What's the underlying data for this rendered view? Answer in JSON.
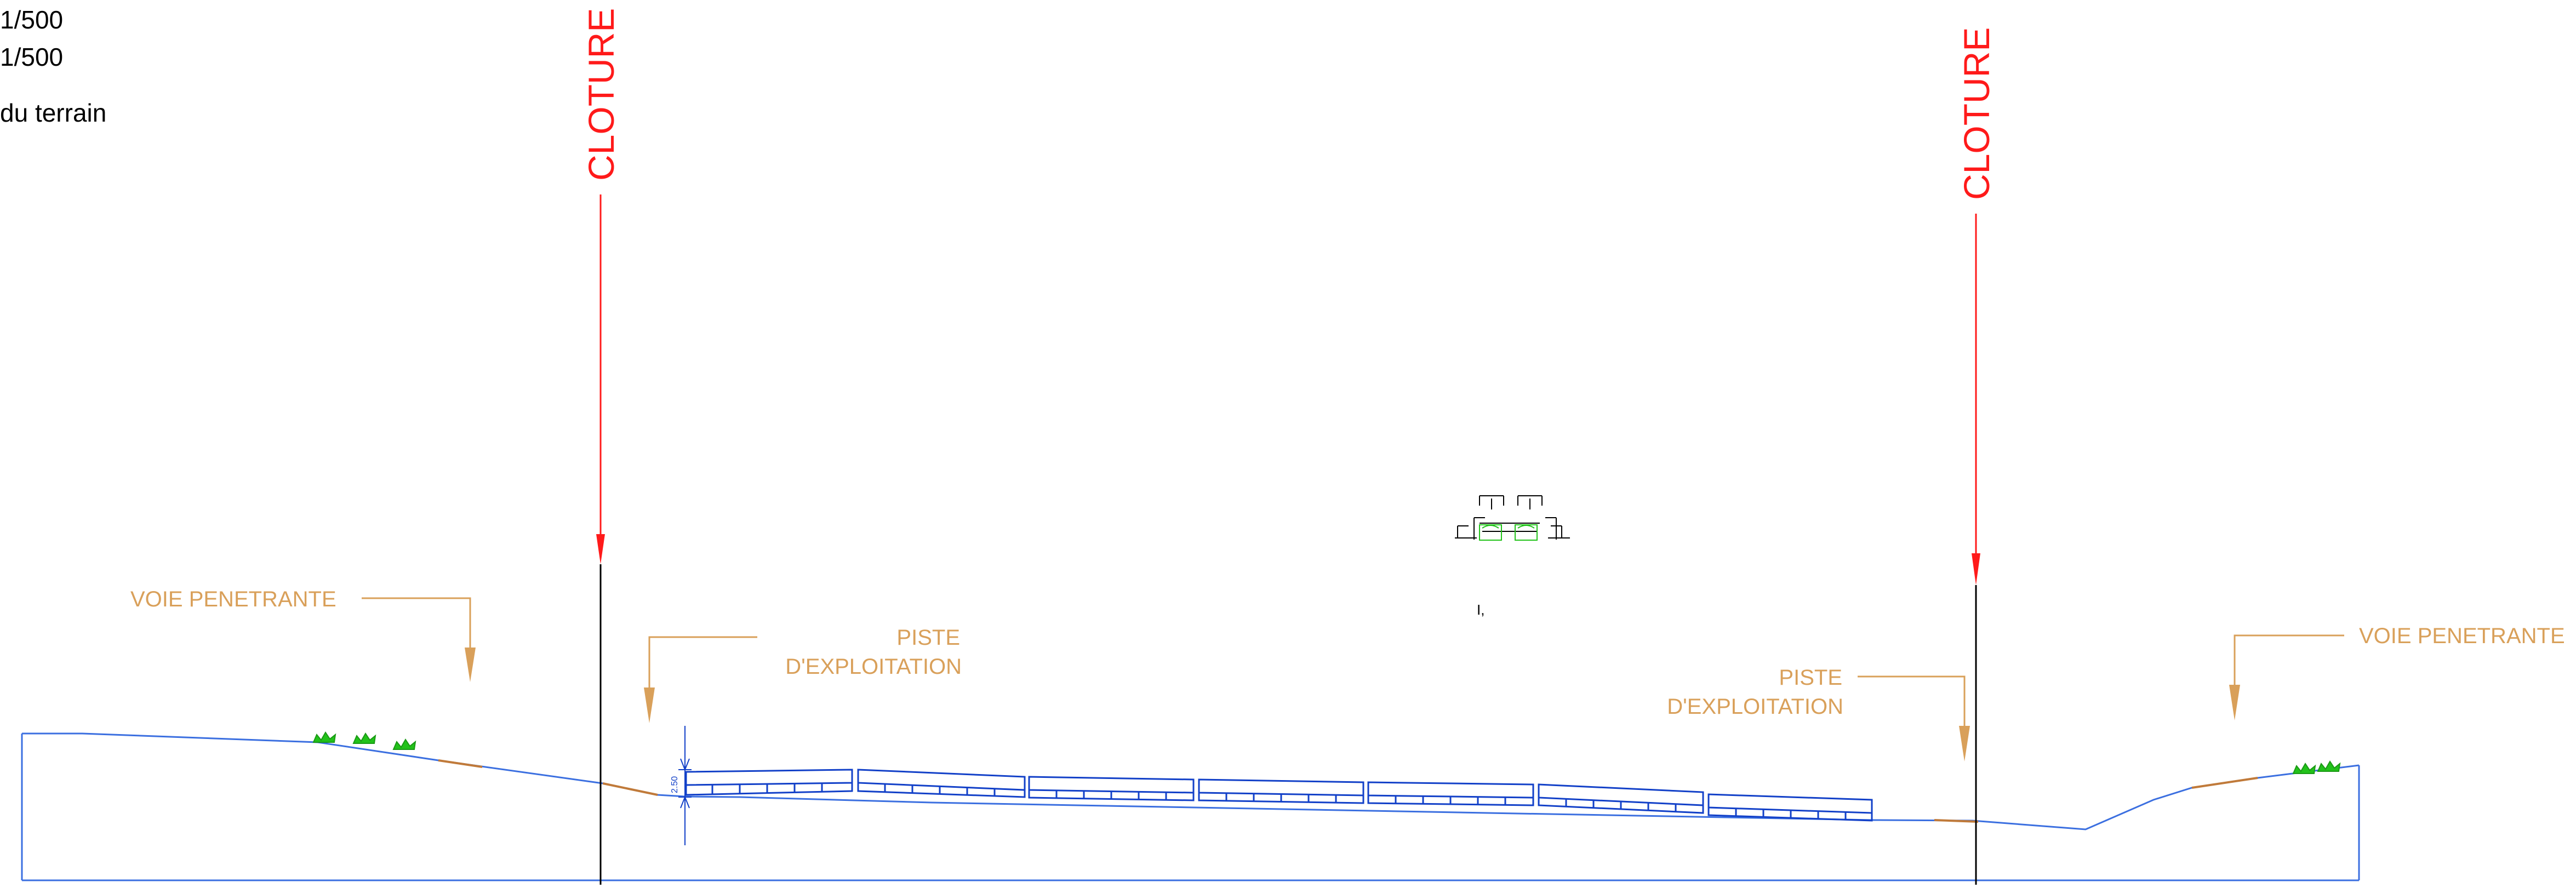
{
  "header": {
    "scale_horizontal": "1/500",
    "scale_vertical": "1/500",
    "terrain_label": "du terrain"
  },
  "labels": {
    "cloture_left": "CLOTURE",
    "cloture_right": "CLOTURE",
    "voie_left": "VOIE PENETRANTE",
    "voie_right": "VOIE PENETRANTE",
    "piste_left_line1": "PISTE",
    "piste_left_line2": "D'EXPLOITATION",
    "piste_right_line1": "PISTE",
    "piste_right_line2": "D'EXPLOITATION",
    "panel_height": "2.50",
    "detail_marker": "I,"
  },
  "colors": {
    "ground": "#3b6fe0",
    "panels": "#1240c8",
    "fence": "#ff1a1a",
    "annotations": "#d9a05a",
    "vegetation": "#22c21a",
    "road": "#c07a3a"
  }
}
